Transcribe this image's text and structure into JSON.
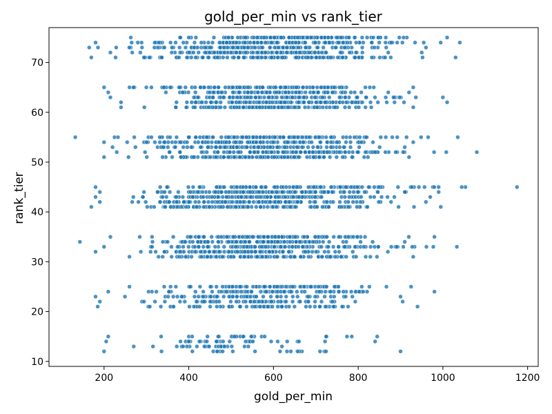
{
  "chart_data": {
    "type": "scatter",
    "title": "gold_per_min vs rank_tier",
    "xlabel": "gold_per_min",
    "ylabel": "rank_tier",
    "xlim": [
      70,
      1225
    ],
    "ylim": [
      9,
      77
    ],
    "x_ticks": [
      200,
      400,
      600,
      800,
      1000,
      1200
    ],
    "y_ticks": [
      10,
      20,
      30,
      40,
      50,
      60,
      70
    ],
    "grid": false,
    "legend": "none",
    "marker_color": "#1f77b4",
    "marker_alpha": 0.8,
    "rank_levels": [
      {
        "rank": 75,
        "xmin": 263,
        "xmax": 1010,
        "n": 120
      },
      {
        "rank": 74,
        "xmin": 180,
        "xmax": 1040,
        "n": 130
      },
      {
        "rank": 73,
        "xmin": 165,
        "xmax": 960,
        "n": 120
      },
      {
        "rank": 72,
        "xmin": 215,
        "xmax": 950,
        "n": 120
      },
      {
        "rank": 71,
        "xmin": 170,
        "xmax": 1030,
        "n": 130
      },
      {
        "rank": 65,
        "xmin": 200,
        "xmax": 930,
        "n": 110
      },
      {
        "rank": 64,
        "xmin": 210,
        "xmax": 920,
        "n": 100
      },
      {
        "rank": 63,
        "xmin": 215,
        "xmax": 1000,
        "n": 100
      },
      {
        "rank": 62,
        "xmin": 240,
        "xmax": 1010,
        "n": 110
      },
      {
        "rank": 61,
        "xmin": 240,
        "xmax": 930,
        "n": 120
      },
      {
        "rank": 55,
        "xmin": 132,
        "xmax": 1035,
        "n": 120
      },
      {
        "rank": 54,
        "xmin": 200,
        "xmax": 930,
        "n": 120
      },
      {
        "rank": 53,
        "xmin": 220,
        "xmax": 910,
        "n": 110
      },
      {
        "rank": 52,
        "xmin": 230,
        "xmax": 1080,
        "n": 120
      },
      {
        "rank": 51,
        "xmin": 200,
        "xmax": 920,
        "n": 120
      },
      {
        "rank": 45,
        "xmin": 180,
        "xmax": 1175,
        "n": 120
      },
      {
        "rank": 44,
        "xmin": 190,
        "xmax": 990,
        "n": 120
      },
      {
        "rank": 43,
        "xmin": 180,
        "xmax": 970,
        "n": 120
      },
      {
        "rank": 42,
        "xmin": 190,
        "xmax": 960,
        "n": 120
      },
      {
        "rank": 41,
        "xmin": 170,
        "xmax": 995,
        "n": 120
      },
      {
        "rank": 35,
        "xmin": 215,
        "xmax": 980,
        "n": 110
      },
      {
        "rank": 34,
        "xmin": 143,
        "xmax": 910,
        "n": 110
      },
      {
        "rank": 33,
        "xmin": 200,
        "xmax": 1033,
        "n": 110
      },
      {
        "rank": 32,
        "xmin": 180,
        "xmax": 870,
        "n": 110
      },
      {
        "rank": 31,
        "xmin": 260,
        "xmax": 930,
        "n": 110
      },
      {
        "rank": 25,
        "xmin": 260,
        "xmax": 925,
        "n": 80
      },
      {
        "rank": 24,
        "xmin": 210,
        "xmax": 980,
        "n": 70
      },
      {
        "rank": 23,
        "xmin": 180,
        "xmax": 900,
        "n": 60
      },
      {
        "rank": 22,
        "xmin": 190,
        "xmax": 905,
        "n": 60
      },
      {
        "rank": 21,
        "xmin": 185,
        "xmax": 940,
        "n": 60
      },
      {
        "rank": 15,
        "xmin": 210,
        "xmax": 845,
        "n": 25
      },
      {
        "rank": 14,
        "xmin": 205,
        "xmax": 840,
        "n": 30
      },
      {
        "rank": 13,
        "xmin": 270,
        "xmax": 620,
        "n": 25
      },
      {
        "rank": 12,
        "xmin": 200,
        "xmax": 900,
        "n": 20
      }
    ]
  }
}
